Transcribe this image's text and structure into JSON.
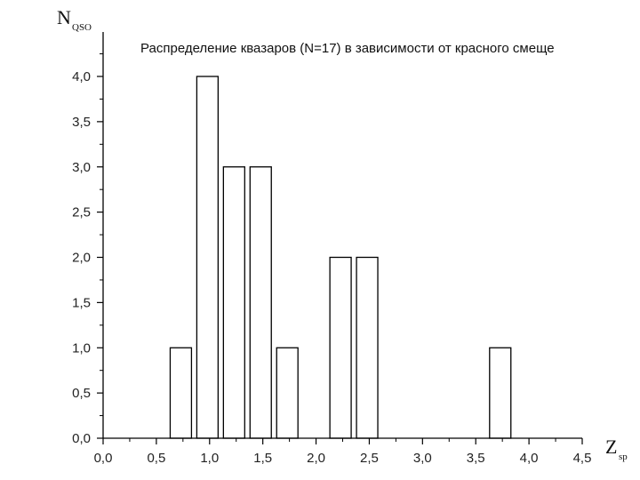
{
  "chart_data": {
    "type": "bar",
    "title": "Распределение квазаров (N=17) в зависимости от красного смеще",
    "ylabel": {
      "main": "N",
      "sub": "QSO"
    },
    "xlabel": {
      "main": "Z",
      "sub": "sp"
    },
    "xlim": [
      0,
      4.5
    ],
    "ylim": [
      0,
      4.0
    ],
    "grid": false,
    "xticks": [
      0,
      0.5,
      1.0,
      1.5,
      2.0,
      2.5,
      3.0,
      3.5,
      4.0,
      4.5
    ],
    "xtick_labels": [
      "0,0",
      "0,5",
      "1,0",
      "1,5",
      "2,0",
      "2,5",
      "3,0",
      "3,5",
      "4,0",
      "4,5"
    ],
    "yticks": [
      0,
      0.5,
      1.0,
      1.5,
      2.0,
      2.5,
      3.0,
      3.5,
      4.0
    ],
    "ytick_labels": [
      "0,0",
      "0,5",
      "1,0",
      "1,5",
      "2,0",
      "2,5",
      "3,0",
      "3,5",
      "4,0"
    ],
    "bars": [
      {
        "x0": 0.63,
        "x1": 0.83,
        "value": 1
      },
      {
        "x0": 0.88,
        "x1": 1.08,
        "value": 4
      },
      {
        "x0": 1.13,
        "x1": 1.33,
        "value": 3
      },
      {
        "x0": 1.38,
        "x1": 1.58,
        "value": 3
      },
      {
        "x0": 1.63,
        "x1": 1.83,
        "value": 1
      },
      {
        "x0": 2.13,
        "x1": 2.33,
        "value": 2
      },
      {
        "x0": 2.38,
        "x1": 2.58,
        "value": 2
      },
      {
        "x0": 3.63,
        "x1": 3.83,
        "value": 1
      }
    ],
    "colors": {
      "bar_fill": "#ffffff",
      "bar_stroke": "#000000",
      "axis": "#000000"
    }
  }
}
